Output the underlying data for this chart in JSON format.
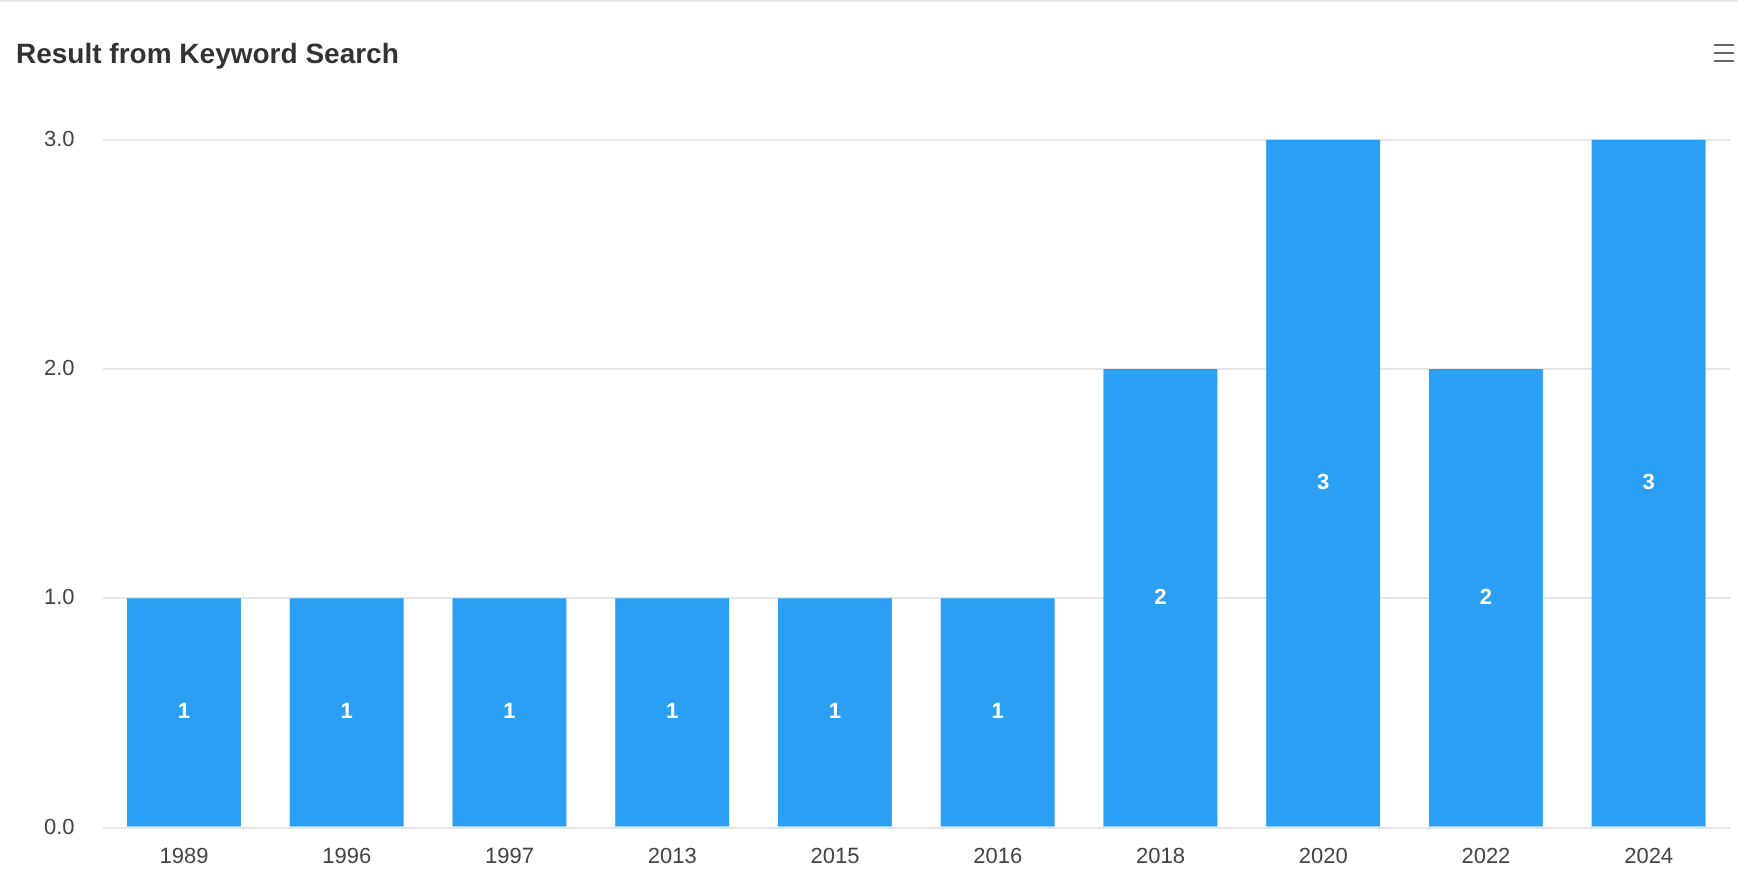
{
  "chart_data": {
    "type": "bar",
    "title": "Result from Keyword Search",
    "categories": [
      "1989",
      "1996",
      "1997",
      "2013",
      "2015",
      "2016",
      "2018",
      "2020",
      "2022",
      "2024"
    ],
    "values": [
      1,
      1,
      1,
      1,
      1,
      1,
      2,
      3,
      2,
      3
    ],
    "color": "#2b9ff4",
    "ylim": [
      0,
      3
    ],
    "yticks": [
      {
        "value": 0,
        "label": "0.0"
      },
      {
        "value": 1,
        "label": "1.0"
      },
      {
        "value": 2,
        "label": "2.0"
      },
      {
        "value": 3,
        "label": "3.0"
      }
    ],
    "grid": "y",
    "legend": false,
    "data_labels": true
  }
}
